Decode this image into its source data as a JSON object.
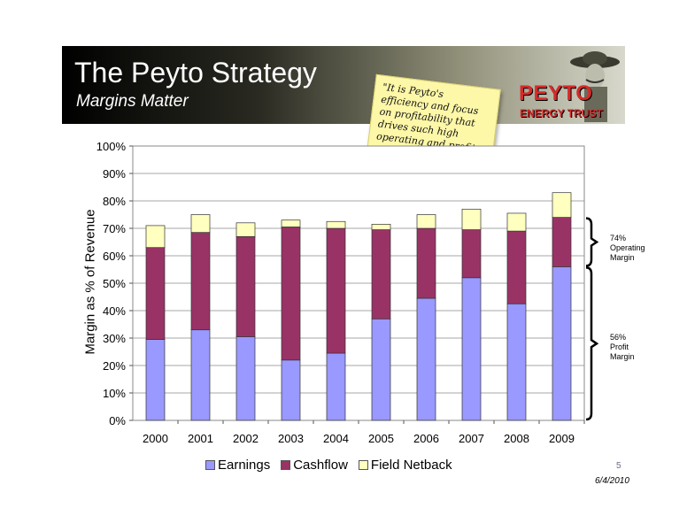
{
  "header": {
    "title": "The Peyto Strategy",
    "subtitle": "Margins Matter"
  },
  "quote_note": "\"It is Peyto's\nefficiency and focus\non profitability that\ndrives such high\noperating and profit\nmargins.\"",
  "logo": {
    "name": "PEYTO",
    "subtitle": "ENERGY TRUST"
  },
  "annotations": [
    {
      "id": "operating",
      "text": "74%\nOperating\nMargin",
      "y_from": 74,
      "y_to": 56
    },
    {
      "id": "profit",
      "text": "56%\nProfit\nMargin",
      "y_from": 56,
      "y_to": 0
    }
  ],
  "footer": {
    "page": "5",
    "date": "6/4/2010"
  },
  "colors": {
    "earnings": "#9999ff",
    "cashflow": "#993366",
    "field_netback": "#ffffc0"
  },
  "chart_data": {
    "type": "bar",
    "stacked": true,
    "title": "",
    "xlabel": "",
    "ylabel": "Margin as % of Revenue",
    "ylim": [
      0,
      100
    ],
    "yticks": [
      "0%",
      "10%",
      "20%",
      "30%",
      "40%",
      "50%",
      "60%",
      "70%",
      "80%",
      "90%",
      "100%"
    ],
    "categories": [
      "2000",
      "2001",
      "2002",
      "2003",
      "2004",
      "2005",
      "2006",
      "2007",
      "2008",
      "2009"
    ],
    "series": [
      {
        "name": "Earnings",
        "values": [
          29.5,
          33,
          30.5,
          22,
          24.5,
          37,
          44.5,
          52,
          42.5,
          56
        ]
      },
      {
        "name": "Cashflow",
        "values": [
          33.5,
          35.5,
          36.5,
          48.5,
          45.5,
          32.5,
          25.5,
          17.5,
          26.5,
          18
        ]
      },
      {
        "name": "Field Netback",
        "values": [
          8,
          6.5,
          5,
          2.5,
          2.5,
          2,
          5,
          7.5,
          6.5,
          9
        ]
      }
    ],
    "grid": true,
    "legend": "bottom"
  }
}
